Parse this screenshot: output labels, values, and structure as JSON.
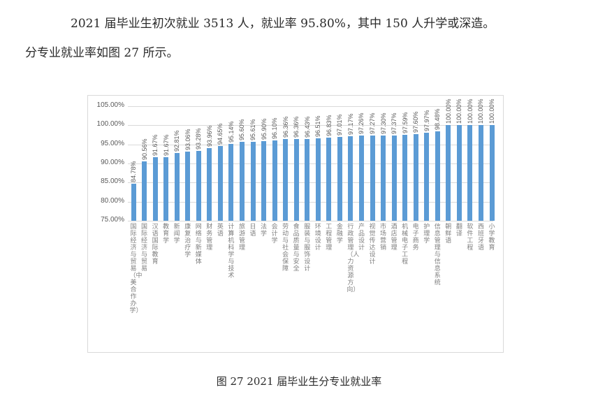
{
  "document": {
    "paragraph_1": "2021 届毕业生初次就业 3513 人，就业率 95.80%，其中 150 人升学或深造。",
    "paragraph_2": "分专业就业率如图 27 所示。",
    "caption": "图 27 2021 届毕业生分专业就业率"
  },
  "colors": {
    "bar": "#5b9bd5",
    "grid": "#d9d9d9",
    "text": "#595959"
  },
  "chart_data": {
    "type": "bar",
    "title": "",
    "xlabel": "",
    "ylabel": "",
    "ylim": [
      0.75,
      1.05
    ],
    "yticks": [
      "75.00%",
      "80.00%",
      "85.00%",
      "90.00%",
      "95.00%",
      "100.00%",
      "105.00%"
    ],
    "grid": true,
    "legend": "none",
    "categories": [
      "国际经济与贸易（中美合作办学）",
      "国际经济与贸易",
      "汉语国际教育",
      "教育学",
      "新闻学",
      "康复治疗学",
      "网络与新媒体",
      "财务管理",
      "英语",
      "计算机科学与技术",
      "旅游管理",
      "日语",
      "法学",
      "会计学",
      "劳动与社会保障",
      "食品质量与安全",
      "服装与服饰设计",
      "环境设计",
      "工程管理",
      "金融学",
      "行政管理（人力资源方向）",
      "产品设计",
      "视觉传达设计",
      "市场营销",
      "酒店管理",
      "机械电子工程",
      "电子商务",
      "护理学",
      "信息管理与信息系统",
      "朝鲜语",
      "翻译",
      "软件工程",
      "西班牙语",
      "小学教育"
    ],
    "values": [
      84.78,
      90.56,
      91.67,
      91.67,
      92.81,
      93.06,
      93.28,
      93.96,
      94.65,
      95.14,
      95.6,
      95.61,
      95.9,
      96.1,
      96.36,
      96.36,
      96.43,
      96.51,
      96.83,
      97.01,
      97.17,
      97.26,
      97.27,
      97.3,
      97.37,
      97.59,
      97.6,
      97.97,
      98.48,
      100.0,
      100.0,
      100.0,
      100.0,
      100.0
    ],
    "labels": [
      "84.78%",
      "90.56%",
      "91.67%",
      "91.67%",
      "92.81%",
      "93.06%",
      "93.28%",
      "93.96%",
      "94.65%",
      "95.14%",
      "95.60%",
      "95.61%",
      "95.90%",
      "96.10%",
      "96.36%",
      "96.36%",
      "96.43%",
      "96.51%",
      "96.83%",
      "97.01%",
      "97.17%",
      "97.26%",
      "97.27%",
      "97.30%",
      "97.37%",
      "97.59%",
      "97.60%",
      "97.97%",
      "98.48%",
      "100.00%",
      "100.00%",
      "100.00%",
      "100.00%",
      "100.00%"
    ]
  }
}
